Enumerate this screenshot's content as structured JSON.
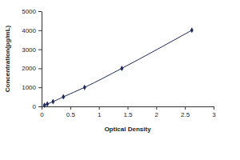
{
  "chart_data": {
    "type": "line",
    "x_label": "Optical Density",
    "y_label": "Concentration(pg/mL)",
    "x": [
      0.05,
      0.1,
      0.2,
      0.38,
      0.75,
      1.4,
      2.62
    ],
    "values": [
      62,
      125,
      250,
      500,
      1000,
      2000,
      4000
    ],
    "color": "#1f2a5c",
    "marker": "diamond",
    "xlim": [
      0,
      3
    ],
    "xticks": [
      0,
      0.5,
      1,
      1.5,
      2,
      2.5,
      3
    ],
    "ylim": [
      0,
      5000
    ],
    "yticks": [
      0,
      1000,
      2000,
      3000,
      4000,
      5000
    ],
    "grid": false
  }
}
